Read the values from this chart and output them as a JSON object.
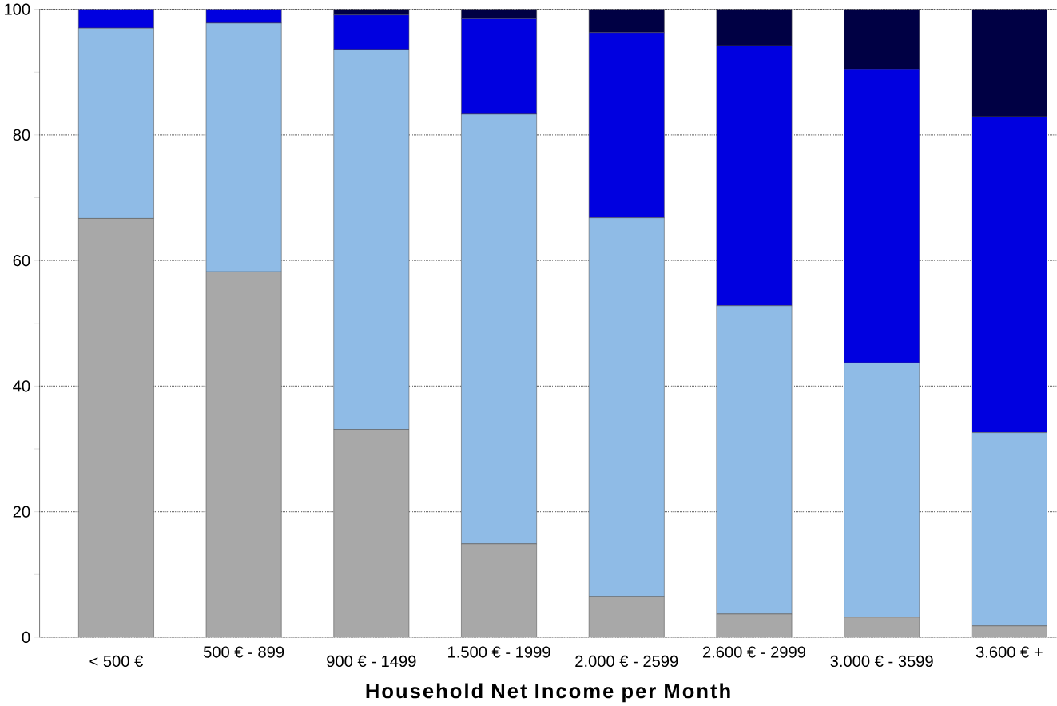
{
  "chart_data": {
    "type": "bar",
    "stacked": true,
    "xlabel": "Household Net Income per Month",
    "categories": [
      "< 500 €",
      "500 € - 899",
      "900 € - 1499",
      "1.500 € - 1999",
      "2.000 € - 2599",
      "2.600 € - 2999",
      "3.000 € - 3599",
      "3.600 € +"
    ],
    "series": [
      {
        "color": "#a8a8a8",
        "values": [
          66.7,
          58.2,
          33.1,
          14.9,
          6.5,
          3.7,
          3.2,
          1.8
        ]
      },
      {
        "color": "#8fbbe6",
        "values": [
          30.3,
          39.6,
          60.5,
          68.4,
          60.3,
          49.1,
          40.5,
          30.8
        ]
      },
      {
        "color": "#0000e0",
        "values": [
          3.0,
          2.2,
          5.5,
          15.2,
          29.5,
          41.4,
          46.7,
          50.3
        ]
      },
      {
        "color": "#000044",
        "values": [
          0,
          0,
          0.9,
          1.5,
          3.7,
          5.8,
          9.6,
          17.1
        ]
      }
    ],
    "ylim": [
      0,
      100
    ],
    "yticks": [
      0,
      {
        "value": 10,
        "label": null
      },
      20,
      {
        "value": 30,
        "label": null
      },
      40,
      {
        "value": 50,
        "label": null
      },
      60,
      {
        "value": 70,
        "label": null
      },
      80,
      {
        "value": 90,
        "label": null
      },
      100
    ],
    "grid": "y"
  }
}
